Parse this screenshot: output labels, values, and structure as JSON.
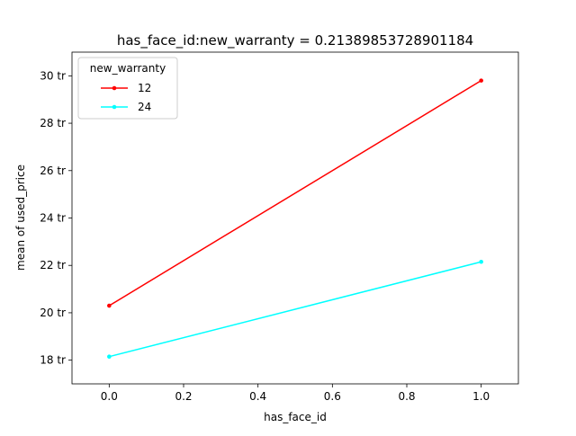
{
  "chart_data": {
    "type": "line",
    "title": "has_face_id:new_warranty = 0.21389853728901184",
    "xlabel": "has_face_id",
    "ylabel": "mean of used_price",
    "x": [
      0.0,
      1.0
    ],
    "xlim": [
      -0.1,
      1.1
    ],
    "ylim": [
      17.0,
      31.0
    ],
    "xticks": [
      0.0,
      0.2,
      0.4,
      0.6,
      0.8,
      1.0
    ],
    "xtick_labels": [
      "0.0",
      "0.2",
      "0.4",
      "0.6",
      "0.8",
      "1.0"
    ],
    "yticks": [
      18,
      20,
      22,
      24,
      26,
      28,
      30
    ],
    "ytick_labels": [
      "18 tr",
      "20 tr",
      "22 tr",
      "24 tr",
      "26 tr",
      "28 tr",
      "30 tr"
    ],
    "legend": {
      "title": "new_warranty",
      "position": "top-left"
    },
    "grid": false,
    "series": [
      {
        "name": "12",
        "color": "#ff0000",
        "values": [
          20.3,
          29.8
        ]
      },
      {
        "name": "24",
        "color": "#00ffff",
        "values": [
          18.15,
          22.15
        ]
      }
    ]
  }
}
